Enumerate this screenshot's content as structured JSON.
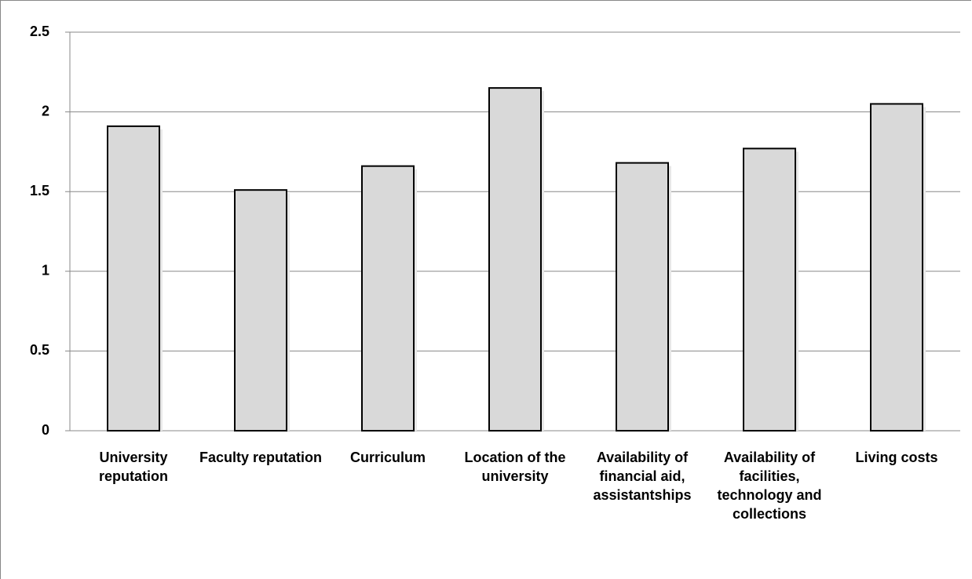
{
  "chart_data": {
    "type": "bar",
    "categories": [
      "University reputation",
      "Faculty reputation",
      "Curriculum",
      "Location of the university",
      "Availability of financial aid, assistantships",
      "Availability of facilities, technology and collections",
      "Living costs"
    ],
    "values": [
      1.91,
      1.51,
      1.66,
      2.15,
      1.68,
      1.77,
      2.05
    ],
    "color": "#d9d9d9",
    "ylim": [
      0,
      2.5
    ],
    "yticks": [
      0,
      0.5,
      1,
      1.5,
      2,
      2.5
    ],
    "grid": true
  }
}
